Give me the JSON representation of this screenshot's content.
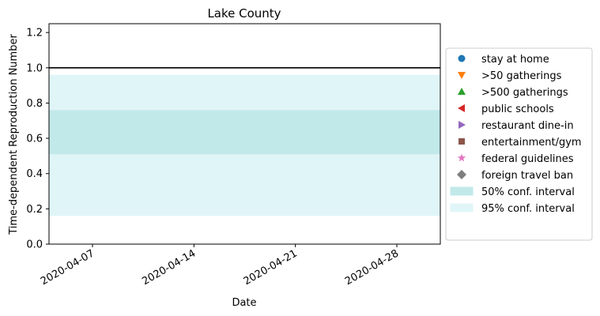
{
  "chart_data": {
    "type": "area",
    "title": "Lake County",
    "xlabel": "Date",
    "ylabel": "Time-dependent Reproduction Number",
    "x_range": [
      "2020-04-04",
      "2020-05-01"
    ],
    "x_ticks": [
      "2020-04-07",
      "2020-04-14",
      "2020-04-21",
      "2020-04-28"
    ],
    "ylim": [
      0,
      1.25
    ],
    "y_ticks": [
      0.0,
      0.2,
      0.4,
      0.6,
      0.8,
      1.0,
      1.2
    ],
    "reference_line": {
      "y": 1.0,
      "color": "#000000"
    },
    "bands": [
      {
        "name": "95% conf. interval",
        "lower": 0.16,
        "upper": 0.96,
        "color": "#e0f5f7"
      },
      {
        "name": "50% conf. interval",
        "lower": 0.51,
        "upper": 0.76,
        "color": "#c2e9ea"
      }
    ],
    "grid": false,
    "legend_position": "outside-right",
    "legend": [
      {
        "label": "stay at home",
        "marker": "circle",
        "color": "#1f77b4"
      },
      {
        "label": ">50 gatherings",
        "marker": "triangle-down",
        "color": "#ff7f0e"
      },
      {
        "label": ">500 gatherings",
        "marker": "triangle-up",
        "color": "#2ca02c"
      },
      {
        "label": "public schools",
        "marker": "triangle-left",
        "color": "#d62728"
      },
      {
        "label": "restaurant dine-in",
        "marker": "triangle-right",
        "color": "#9467bd"
      },
      {
        "label": "entertainment/gym",
        "marker": "square",
        "color": "#8c564b"
      },
      {
        "label": "federal guidelines",
        "marker": "star",
        "color": "#e377c2"
      },
      {
        "label": "foreign travel ban",
        "marker": "diamond",
        "color": "#7f7f7f"
      },
      {
        "label": "50% conf. interval",
        "marker": "patch",
        "color": "#c2e9ea"
      },
      {
        "label": "95% conf. interval",
        "marker": "patch",
        "color": "#e0f5f7"
      }
    ]
  }
}
